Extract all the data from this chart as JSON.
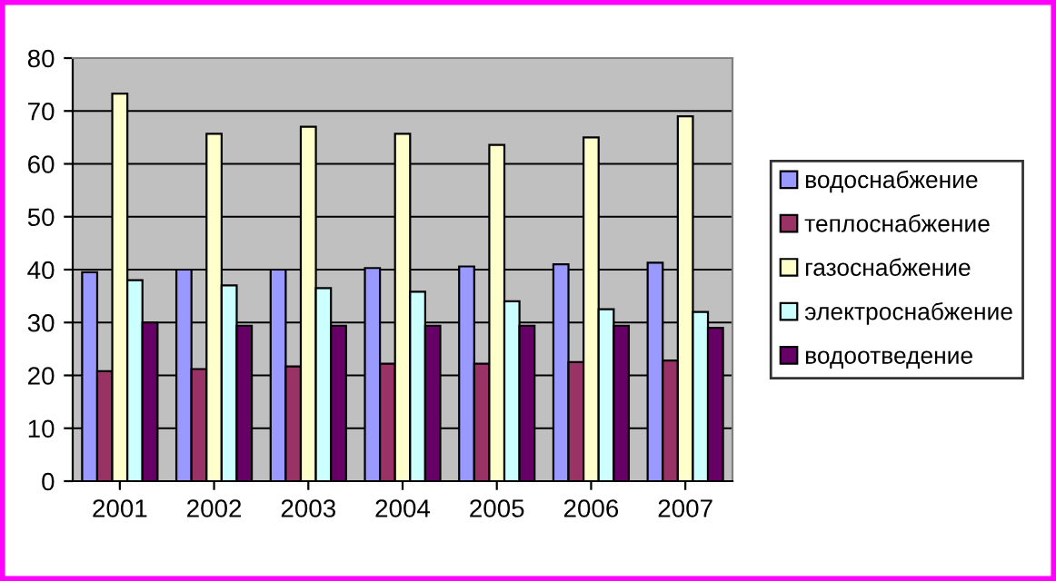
{
  "chart_data": {
    "type": "bar",
    "categories": [
      "2001",
      "2002",
      "2003",
      "2004",
      "2005",
      "2006",
      "2007"
    ],
    "series": [
      {
        "name": "водоснабжение",
        "color": "#9999ff",
        "values": [
          39.5,
          40,
          40,
          40.3,
          40.6,
          41,
          41.3
        ]
      },
      {
        "name": "теплоснабжение",
        "color": "#993366",
        "values": [
          20.8,
          21.2,
          21.7,
          22.2,
          22.2,
          22.5,
          22.8
        ]
      },
      {
        "name": "газоснабжение",
        "color": "#ffffcc",
        "values": [
          73.3,
          65.7,
          67,
          65.7,
          63.6,
          65,
          69
        ]
      },
      {
        "name": "электроснабжение",
        "color": "#ccffff",
        "values": [
          38,
          37,
          36.5,
          35.8,
          34,
          32.5,
          32
        ]
      },
      {
        "name": "водоотведение",
        "color": "#660066",
        "values": [
          30,
          29.4,
          29.4,
          29.4,
          29.4,
          29.4,
          29
        ]
      }
    ],
    "ylim": [
      0,
      80
    ],
    "yticks": [
      0,
      10,
      20,
      30,
      40,
      50,
      60,
      70,
      80
    ],
    "grid": "y",
    "legend": "right"
  }
}
